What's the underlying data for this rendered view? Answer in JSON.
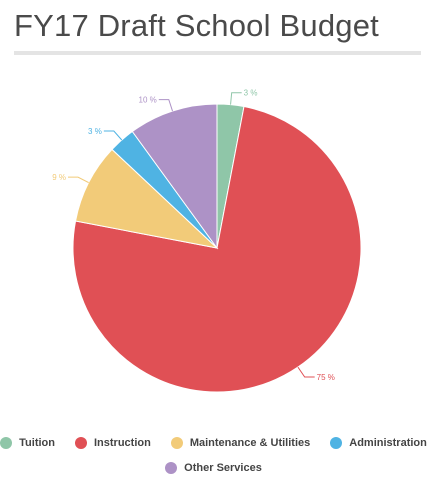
{
  "title": "FY17 Draft School Budget",
  "chart_data": {
    "type": "pie",
    "title": "FY17 Draft School Budget",
    "slices": [
      {
        "name": "Tuition",
        "value": 3,
        "label": "3 %",
        "color": "#8fc6a8"
      },
      {
        "name": "Instruction",
        "value": 75,
        "label": "75 %",
        "color": "#e05055"
      },
      {
        "name": "Maintenance & Utilities",
        "value": 9,
        "label": "9 %",
        "color": "#f2cb79"
      },
      {
        "name": "Administration",
        "value": 3,
        "label": "3 %",
        "color": "#4fb3e3"
      },
      {
        "name": "Other Services",
        "value": 10,
        "label": "10 %",
        "color": "#ad92c6"
      }
    ],
    "legend_position": "bottom"
  }
}
